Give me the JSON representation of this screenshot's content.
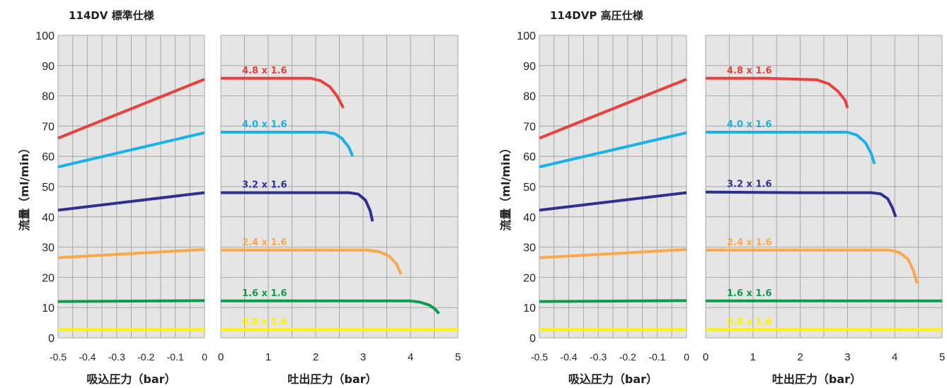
{
  "chart_data": [
    {
      "type": "line",
      "title": "114DV 標準仕様",
      "ylabel": "流量（ml/min）",
      "ylim": [
        0,
        100
      ],
      "yticks": [
        "0",
        "10",
        "20",
        "30",
        "40",
        "50",
        "60",
        "70",
        "80",
        "90",
        "100"
      ],
      "left_panel": {
        "xlabel": "吸込圧力（bar）",
        "xlim": [
          -0.5,
          0
        ],
        "xticks": [
          "-0.5",
          "-0.4",
          "-0.3",
          "-0.2",
          "-0.1",
          "0"
        ]
      },
      "right_panel": {
        "xlabel": "吐出圧力（bar）",
        "xlim": [
          0,
          5
        ],
        "xticks": [
          "0",
          "1",
          "2",
          "3",
          "4",
          "5"
        ]
      },
      "series": [
        {
          "name": "4.8 x 1.6",
          "color": "#e8413b",
          "suction": [
            [
              -0.5,
              66
            ],
            [
              0,
              85.5
            ]
          ],
          "discharge": [
            [
              0,
              85.8
            ],
            [
              1.0,
              85.8
            ],
            [
              1.9,
              85.8
            ],
            [
              2.1,
              85
            ],
            [
              2.3,
              83
            ],
            [
              2.45,
              80
            ],
            [
              2.55,
              77
            ],
            [
              2.58,
              76
            ]
          ]
        },
        {
          "name": "4.0 x 1.6",
          "color": "#1ab0e8",
          "suction": [
            [
              -0.5,
              56.5
            ],
            [
              0,
              67.8
            ]
          ],
          "discharge": [
            [
              0,
              68
            ],
            [
              1.5,
              68
            ],
            [
              2.2,
              68
            ],
            [
              2.4,
              67.5
            ],
            [
              2.55,
              66
            ],
            [
              2.7,
              63
            ],
            [
              2.78,
              60
            ]
          ]
        },
        {
          "name": "3.2 x 1.6",
          "color": "#2e3192",
          "suction": [
            [
              -0.5,
              42.2
            ],
            [
              0,
              48
            ]
          ],
          "discharge": [
            [
              0,
              48
            ],
            [
              1.5,
              48
            ],
            [
              2.7,
              48
            ],
            [
              2.9,
              47.5
            ],
            [
              3.05,
              45.5
            ],
            [
              3.15,
              42
            ],
            [
              3.2,
              38.5
            ]
          ]
        },
        {
          "name": "2.4 x 1.6",
          "color": "#f9a94b",
          "suction": [
            [
              -0.5,
              26.5
            ],
            [
              0,
              29.2
            ]
          ],
          "discharge": [
            [
              0,
              29
            ],
            [
              2,
              29
            ],
            [
              3.1,
              29
            ],
            [
              3.35,
              28.4
            ],
            [
              3.55,
              27
            ],
            [
              3.7,
              24.5
            ],
            [
              3.8,
              21
            ]
          ]
        },
        {
          "name": "1.6 x 1.6",
          "color": "#0b9d4b",
          "suction": [
            [
              -0.5,
              12
            ],
            [
              0,
              12.3
            ]
          ],
          "discharge": [
            [
              0,
              12.2
            ],
            [
              2,
              12.2
            ],
            [
              4.0,
              12.2
            ],
            [
              4.2,
              11.8
            ],
            [
              4.4,
              10.8
            ],
            [
              4.52,
              9.5
            ],
            [
              4.6,
              8
            ]
          ]
        },
        {
          "name": "0.8 x 1.6",
          "color": "#fff200",
          "suction": [
            [
              -0.5,
              2.7
            ],
            [
              0,
              2.7
            ]
          ],
          "discharge": [
            [
              0,
              2.7
            ],
            [
              5,
              2.7
            ]
          ]
        }
      ]
    },
    {
      "type": "line",
      "title": "114DVP 高圧仕様",
      "ylabel": "流量（ml/min）",
      "ylim": [
        0,
        100
      ],
      "yticks": [
        "0",
        "10",
        "20",
        "30",
        "40",
        "50",
        "60",
        "70",
        "80",
        "90",
        "100"
      ],
      "left_panel": {
        "xlabel": "吸込圧力（bar）",
        "xlim": [
          -0.5,
          0
        ],
        "xticks": [
          "-0.5",
          "-0.4",
          "-0.3",
          "-0.2",
          "-0.1",
          "0"
        ]
      },
      "right_panel": {
        "xlabel": "吐出圧力（bar）",
        "xlim": [
          0,
          5
        ],
        "xticks": [
          "0",
          "1",
          "2",
          "3",
          "4",
          "5"
        ]
      },
      "series": [
        {
          "name": "4.8 x 1.6",
          "color": "#e8413b",
          "suction": [
            [
              -0.5,
              66
            ],
            [
              0,
              85.5
            ]
          ],
          "discharge": [
            [
              0,
              85.8
            ],
            [
              1.3,
              85.8
            ],
            [
              2.35,
              85.3
            ],
            [
              2.6,
              84
            ],
            [
              2.8,
              81.5
            ],
            [
              2.95,
              78.5
            ],
            [
              3.0,
              76
            ]
          ]
        },
        {
          "name": "4.0 x 1.6",
          "color": "#1ab0e8",
          "suction": [
            [
              -0.5,
              56.5
            ],
            [
              0,
              67.8
            ]
          ],
          "discharge": [
            [
              0,
              68
            ],
            [
              2,
              68
            ],
            [
              3.0,
              68
            ],
            [
              3.2,
              67
            ],
            [
              3.38,
              64.5
            ],
            [
              3.5,
              61
            ],
            [
              3.57,
              57.5
            ]
          ]
        },
        {
          "name": "3.2 x 1.6",
          "color": "#2e3192",
          "suction": [
            [
              -0.5,
              42.2
            ],
            [
              0,
              48
            ]
          ],
          "discharge": [
            [
              0,
              48.2
            ],
            [
              2,
              48
            ],
            [
              3.5,
              48
            ],
            [
              3.7,
              47.6
            ],
            [
              3.85,
              46
            ],
            [
              3.95,
              43
            ],
            [
              4.02,
              40
            ]
          ]
        },
        {
          "name": "2.4 x 1.6",
          "color": "#f9a94b",
          "suction": [
            [
              -0.5,
              26.5
            ],
            [
              0,
              29.2
            ]
          ],
          "discharge": [
            [
              0,
              29
            ],
            [
              2.5,
              29
            ],
            [
              3.9,
              29
            ],
            [
              4.1,
              28.2
            ],
            [
              4.28,
              26
            ],
            [
              4.4,
              22
            ],
            [
              4.47,
              18
            ]
          ]
        },
        {
          "name": "1.6 x 1.6",
          "color": "#0b9d4b",
          "suction": [
            [
              -0.5,
              12
            ],
            [
              0,
              12.3
            ]
          ],
          "discharge": [
            [
              0,
              12.2
            ],
            [
              5,
              12.2
            ]
          ]
        },
        {
          "name": "0.8 x 1.6",
          "color": "#fff200",
          "suction": [
            [
              -0.5,
              2.7
            ],
            [
              0,
              2.7
            ]
          ],
          "discharge": [
            [
              0,
              2.7
            ],
            [
              5,
              2.7
            ]
          ]
        }
      ]
    }
  ]
}
